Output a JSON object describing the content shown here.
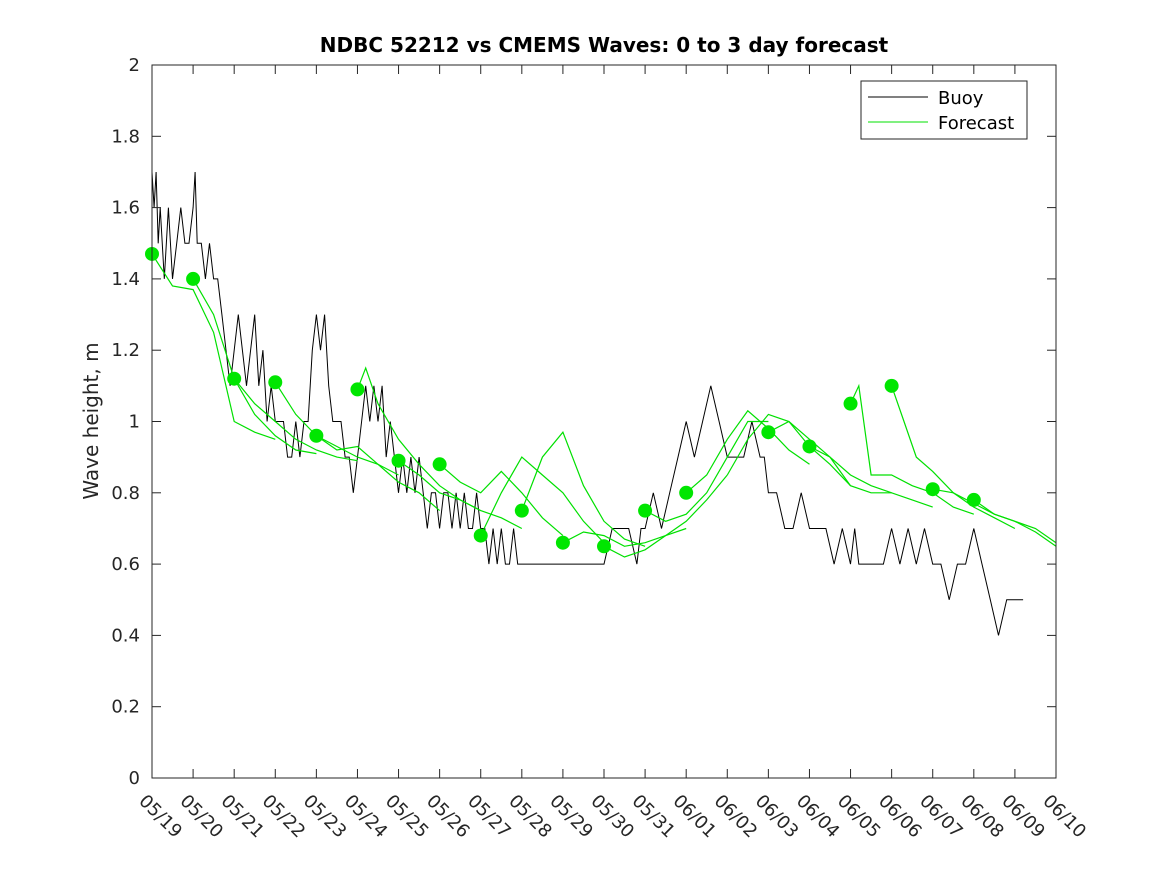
{
  "chart_data": {
    "type": "line",
    "title": "NDBC 52212 vs CMEMS Waves: 0 to 3 day forecast",
    "xlabel": "",
    "ylabel": "Wave height, m",
    "xlim": [
      "05/19",
      "06/10"
    ],
    "ylim": [
      0,
      2
    ],
    "y_ticks": [
      "0",
      "0.2",
      "0.4",
      "0.6",
      "0.8",
      "1",
      "1.2",
      "1.4",
      "1.6",
      "1.8",
      "2"
    ],
    "x_ticks": [
      "05/19",
      "05/20",
      "05/21",
      "05/22",
      "05/23",
      "05/24",
      "05/25",
      "05/26",
      "05/27",
      "05/28",
      "05/29",
      "05/30",
      "05/31",
      "06/01",
      "06/02",
      "06/03",
      "06/04",
      "06/05",
      "06/06",
      "06/07",
      "06/08",
      "06/09",
      "06/10"
    ],
    "grid": false,
    "legend": {
      "placement": "top-right",
      "entries": [
        {
          "name": "Buoy",
          "color": "#000000"
        },
        {
          "name": "Forecast",
          "color": "#00e000"
        }
      ]
    },
    "colors": {
      "buoy": "#000000",
      "forecast": "#00e000",
      "marker": "#00e600"
    },
    "series": [
      {
        "name": "Buoy",
        "x": [
          0,
          0.05,
          0.1,
          0.15,
          0.2,
          0.3,
          0.4,
          0.5,
          0.6,
          0.7,
          0.8,
          0.9,
          1.0,
          1.05,
          1.1,
          1.2,
          1.3,
          1.4,
          1.5,
          1.6,
          1.7,
          1.8,
          1.9,
          2.0,
          2.1,
          2.2,
          2.3,
          2.4,
          2.5,
          2.6,
          2.7,
          2.8,
          2.9,
          3.0,
          3.1,
          3.2,
          3.3,
          3.4,
          3.5,
          3.6,
          3.7,
          3.8,
          3.9,
          4.0,
          4.1,
          4.2,
          4.3,
          4.4,
          4.5,
          4.6,
          4.7,
          4.8,
          4.9,
          5.0,
          5.1,
          5.2,
          5.3,
          5.4,
          5.5,
          5.6,
          5.7,
          5.8,
          5.9,
          6.0,
          6.1,
          6.2,
          6.3,
          6.4,
          6.5,
          6.6,
          6.7,
          6.8,
          6.9,
          7.0,
          7.1,
          7.2,
          7.3,
          7.4,
          7.5,
          7.6,
          7.7,
          7.8,
          7.9,
          8.0,
          8.1,
          8.2,
          8.3,
          8.4,
          8.5,
          8.6,
          8.7,
          8.8,
          8.9,
          9.0,
          9.2,
          9.4,
          9.6,
          9.8,
          10.0,
          10.2,
          10.4,
          10.6,
          10.8,
          11.0,
          11.2,
          11.4,
          11.6,
          11.8,
          11.9,
          12.0,
          12.2,
          12.4,
          12.6,
          12.8,
          13.0,
          13.2,
          13.4,
          13.6,
          13.8,
          14.0,
          14.2,
          14.4,
          14.6,
          14.8,
          14.9,
          15.0,
          15.2,
          15.4,
          15.6,
          15.8,
          16.0,
          16.2,
          16.4,
          16.6,
          16.8,
          17.0,
          17.1,
          17.2,
          17.4,
          17.6,
          17.8,
          18.0,
          18.2,
          18.4,
          18.6,
          18.8,
          19.0,
          19.2,
          19.4,
          19.6,
          19.8,
          20.0,
          20.2,
          20.4,
          20.6,
          20.8,
          21.0,
          21.2
        ],
        "values": [
          1.7,
          1.6,
          1.7,
          1.5,
          1.6,
          1.4,
          1.6,
          1.4,
          1.5,
          1.6,
          1.5,
          1.5,
          1.6,
          1.7,
          1.5,
          1.5,
          1.4,
          1.5,
          1.4,
          1.4,
          1.3,
          1.2,
          1.1,
          1.2,
          1.3,
          1.2,
          1.1,
          1.2,
          1.3,
          1.1,
          1.2,
          1.0,
          1.1,
          1.0,
          1.0,
          1.0,
          0.9,
          0.9,
          1.0,
          0.9,
          1.0,
          1.0,
          1.2,
          1.3,
          1.2,
          1.3,
          1.1,
          1.0,
          1.0,
          1.0,
          0.9,
          0.9,
          0.8,
          0.9,
          1.0,
          1.1,
          1.0,
          1.1,
          1.0,
          1.1,
          0.9,
          1.0,
          0.9,
          0.8,
          0.9,
          0.8,
          0.9,
          0.8,
          0.9,
          0.8,
          0.7,
          0.8,
          0.8,
          0.7,
          0.8,
          0.8,
          0.7,
          0.8,
          0.7,
          0.8,
          0.7,
          0.7,
          0.8,
          0.7,
          0.7,
          0.6,
          0.7,
          0.6,
          0.7,
          0.6,
          0.6,
          0.7,
          0.6,
          0.6,
          0.6,
          0.6,
          0.6,
          0.6,
          0.6,
          0.6,
          0.6,
          0.6,
          0.6,
          0.6,
          0.7,
          0.7,
          0.7,
          0.6,
          0.7,
          0.7,
          0.8,
          0.7,
          0.8,
          0.9,
          1.0,
          0.9,
          1.0,
          1.1,
          1.0,
          0.9,
          0.9,
          0.9,
          1.0,
          0.9,
          0.9,
          0.8,
          0.8,
          0.7,
          0.7,
          0.8,
          0.7,
          0.7,
          0.7,
          0.6,
          0.7,
          0.6,
          0.7,
          0.6,
          0.6,
          0.6,
          0.6,
          0.7,
          0.6,
          0.7,
          0.6,
          0.7,
          0.6,
          0.6,
          0.5,
          0.6,
          0.6,
          0.7,
          0.6,
          0.5,
          0.4,
          0.5,
          0.5,
          0.5
        ]
      },
      {
        "name": "Forecast",
        "x": [
          0,
          0.5,
          1,
          1.5,
          2,
          2.5,
          3
        ],
        "values": [
          1.47,
          1.38,
          1.37,
          1.25,
          1.0,
          0.97,
          0.95
        ]
      },
      {
        "name": "Forecast",
        "x": [
          1,
          1.5,
          2,
          2.5,
          3,
          3.5,
          4
        ],
        "values": [
          1.4,
          1.3,
          1.12,
          1.02,
          0.96,
          0.92,
          0.91
        ]
      },
      {
        "name": "Forecast",
        "x": [
          2,
          2.5,
          3,
          3.5,
          4,
          4.5,
          5
        ],
        "values": [
          1.12,
          1.05,
          1.0,
          0.95,
          0.92,
          0.9,
          0.89
        ]
      },
      {
        "name": "Forecast",
        "x": [
          3,
          3.5,
          4,
          4.5,
          5,
          5.5,
          6
        ],
        "values": [
          1.11,
          1.02,
          0.96,
          0.93,
          0.9,
          0.88,
          0.85
        ]
      },
      {
        "name": "Forecast",
        "x": [
          4,
          4.5,
          5,
          5.5,
          6,
          6.5,
          7
        ],
        "values": [
          0.96,
          0.92,
          0.93,
          0.88,
          0.83,
          0.8,
          0.75
        ]
      },
      {
        "name": "Forecast",
        "x": [
          5,
          5.2,
          5.5,
          6,
          6.5,
          7,
          7.5,
          8
        ],
        "values": [
          1.09,
          1.15,
          1.05,
          0.95,
          0.88,
          0.82,
          0.78,
          0.75
        ]
      },
      {
        "name": "Forecast",
        "x": [
          6,
          6.5,
          7,
          7.5,
          8,
          8.5,
          9
        ],
        "values": [
          0.89,
          0.85,
          0.8,
          0.78,
          0.75,
          0.73,
          0.7
        ]
      },
      {
        "name": "Forecast",
        "x": [
          7,
          7.5,
          8,
          8.5,
          9,
          9.5,
          10
        ],
        "values": [
          0.88,
          0.83,
          0.8,
          0.86,
          0.8,
          0.73,
          0.68
        ]
      },
      {
        "name": "Forecast",
        "x": [
          8,
          8.5,
          9,
          9.5,
          10,
          10.5,
          11
        ],
        "values": [
          0.68,
          0.8,
          0.9,
          0.85,
          0.8,
          0.72,
          0.66
        ]
      },
      {
        "name": "Forecast",
        "x": [
          9,
          9.5,
          10,
          10.5,
          11,
          11.5,
          12
        ],
        "values": [
          0.75,
          0.9,
          0.97,
          0.82,
          0.72,
          0.67,
          0.65
        ]
      },
      {
        "name": "Forecast",
        "x": [
          10,
          10.5,
          11,
          11.5,
          12,
          12.5,
          13
        ],
        "values": [
          0.66,
          0.69,
          0.68,
          0.65,
          0.66,
          0.68,
          0.7
        ]
      },
      {
        "name": "Forecast",
        "x": [
          11,
          11.5,
          12,
          12.5,
          13,
          13.5,
          14
        ],
        "values": [
          0.65,
          0.62,
          0.64,
          0.68,
          0.72,
          0.78,
          0.85
        ]
      },
      {
        "name": "Forecast",
        "x": [
          12,
          12.5,
          13,
          13.5,
          14,
          14.5,
          15
        ],
        "values": [
          0.75,
          0.72,
          0.74,
          0.8,
          0.9,
          1.0,
          1.0
        ]
      },
      {
        "name": "Forecast",
        "x": [
          13,
          13.5,
          14,
          14.5,
          15,
          15.5,
          16
        ],
        "values": [
          0.8,
          0.85,
          0.95,
          1.03,
          0.98,
          0.92,
          0.88
        ]
      },
      {
        "name": "Forecast",
        "x": [
          14,
          14.5,
          15,
          15.5,
          16,
          16.5,
          17
        ],
        "values": [
          0.85,
          0.95,
          1.02,
          1.0,
          0.93,
          0.88,
          0.82
        ]
      },
      {
        "name": "Forecast",
        "x": [
          15,
          15.5,
          16,
          16.5,
          17,
          17.5,
          18
        ],
        "values": [
          0.97,
          1.0,
          0.95,
          0.9,
          0.85,
          0.82,
          0.8
        ]
      },
      {
        "name": "Forecast",
        "x": [
          16,
          16.5,
          17,
          17.5,
          18,
          18.5,
          19
        ],
        "values": [
          0.93,
          0.9,
          0.82,
          0.8,
          0.8,
          0.78,
          0.76
        ]
      },
      {
        "name": "Forecast",
        "x": [
          17,
          17.2,
          17.5,
          18,
          18.5,
          19,
          19.5,
          20
        ],
        "values": [
          1.05,
          1.1,
          0.85,
          0.85,
          0.82,
          0.8,
          0.76,
          0.74
        ]
      },
      {
        "name": "Forecast",
        "x": [
          18,
          18.3,
          18.6,
          19,
          19.5,
          20,
          20.5,
          21
        ],
        "values": [
          1.1,
          1.0,
          0.9,
          0.86,
          0.8,
          0.76,
          0.73,
          0.7
        ]
      },
      {
        "name": "Forecast",
        "x": [
          19,
          19.5,
          20,
          20.5,
          21,
          21.5,
          22
        ],
        "values": [
          0.81,
          0.8,
          0.77,
          0.74,
          0.72,
          0.7,
          0.66
        ]
      },
      {
        "name": "Forecast",
        "x": [
          20,
          20.5,
          21,
          21.5,
          22
        ],
        "values": [
          0.78,
          0.74,
          0.72,
          0.69,
          0.65
        ]
      }
    ],
    "init_points": {
      "name": "Forecast",
      "x": [
        0,
        1,
        2,
        3,
        4,
        5,
        6,
        7,
        8,
        9,
        10,
        11,
        12,
        13,
        15,
        16,
        17,
        18,
        19,
        20
      ],
      "values": [
        1.47,
        1.4,
        1.12,
        1.11,
        0.96,
        1.09,
        0.89,
        0.88,
        0.68,
        0.75,
        0.66,
        0.65,
        0.75,
        0.8,
        0.97,
        0.93,
        1.05,
        1.1,
        0.81,
        0.78
      ]
    }
  }
}
